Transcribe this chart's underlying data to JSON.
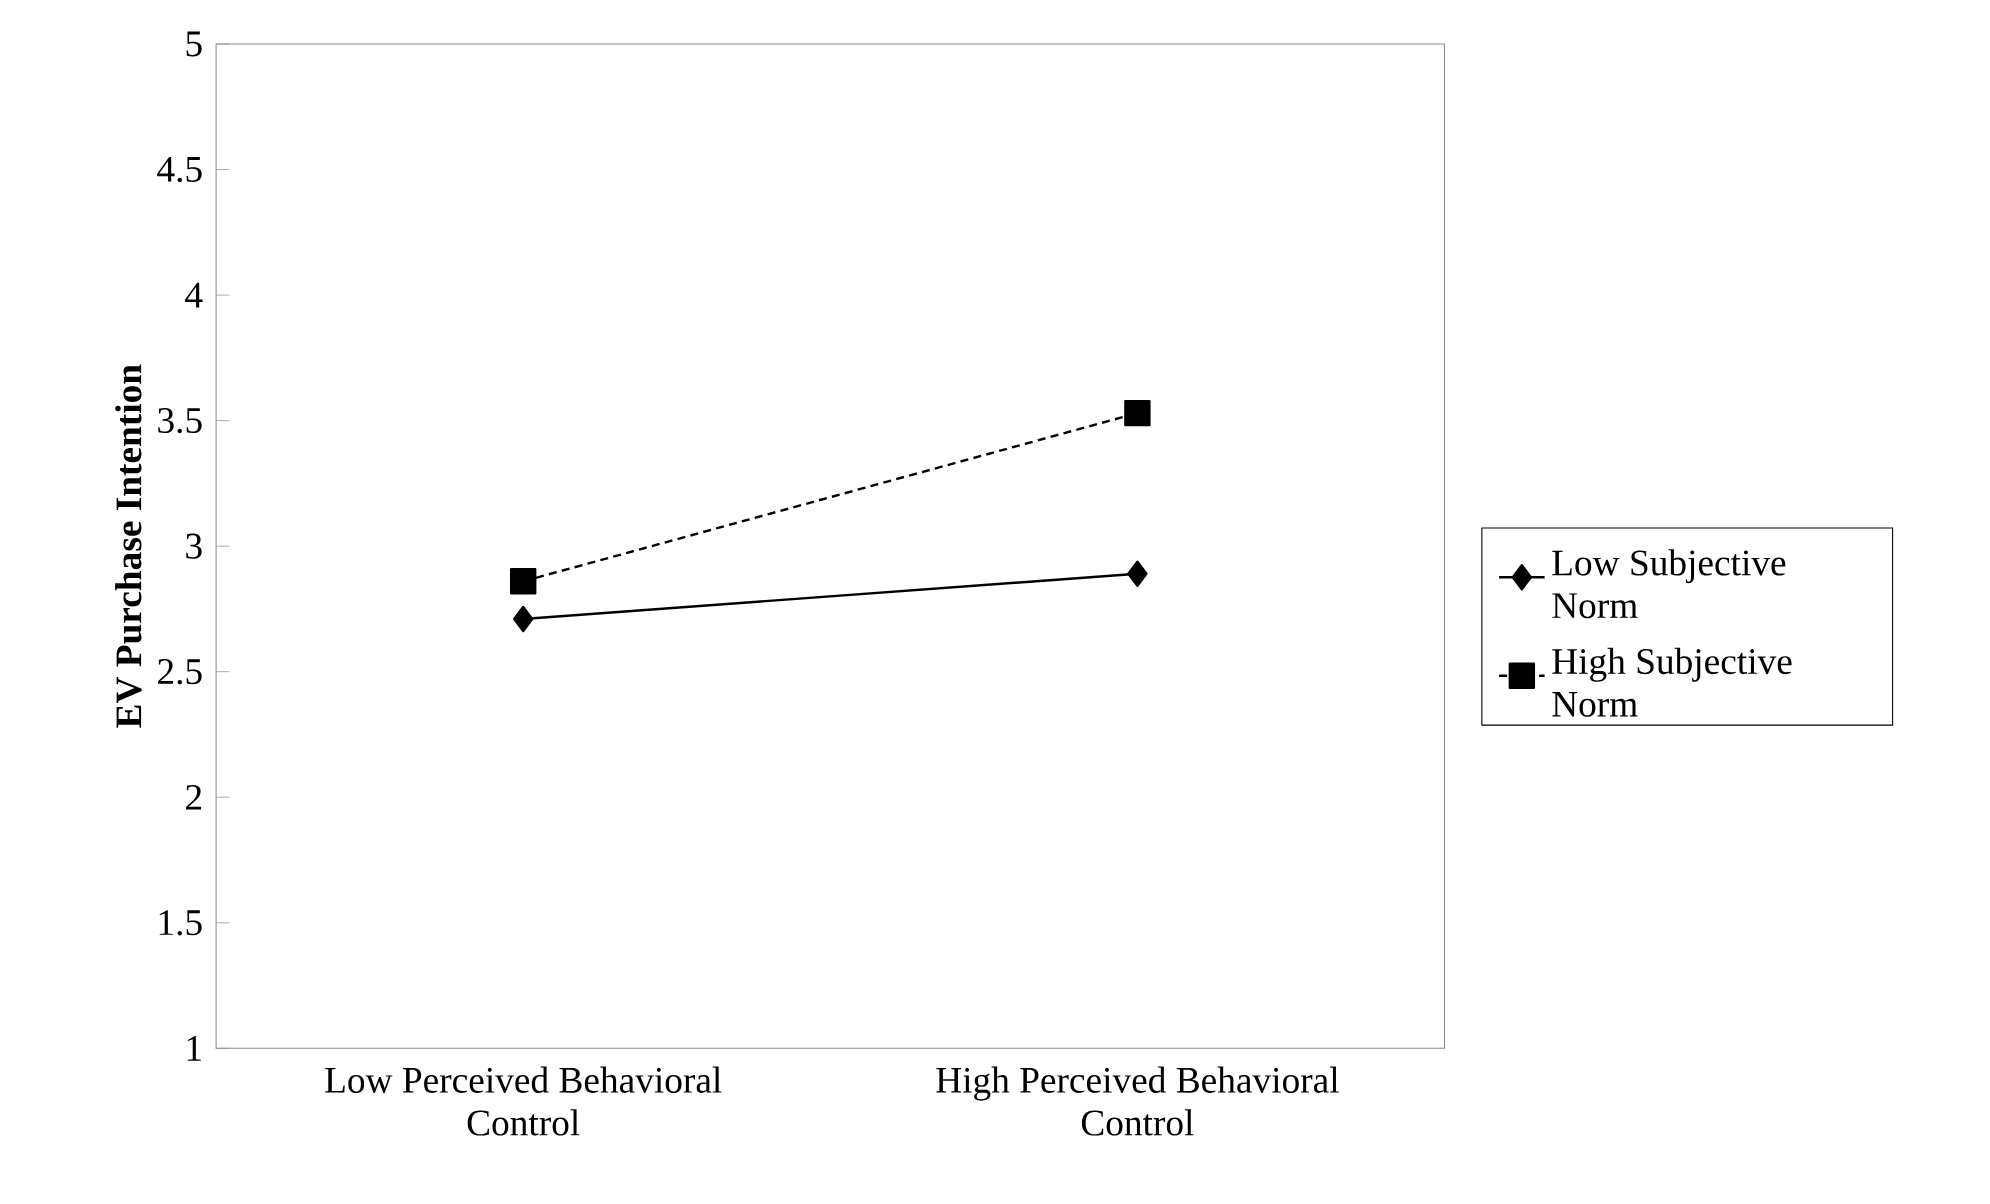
{
  "chart_data": {
    "type": "line",
    "ylabel": "EV Purchase Intention",
    "categories": [
      "Low Perceived Behavioral Control",
      "High Perceived Behavioral Control"
    ],
    "series": [
      {
        "name": "Low Subjective Norm",
        "color": "#000000",
        "values": [
          2.71,
          2.89
        ],
        "marker": "diamond",
        "line_style": "solid"
      },
      {
        "name": "High Subjective Norm",
        "color": "#000000",
        "values": [
          2.86,
          3.53
        ],
        "marker": "square",
        "line_style": "dashed"
      }
    ],
    "ylim": [
      1,
      5
    ],
    "yticks": [
      1,
      1.5,
      2,
      2.5,
      3,
      3.5,
      4,
      4.5,
      5
    ],
    "grid": false,
    "legend": "right"
  }
}
